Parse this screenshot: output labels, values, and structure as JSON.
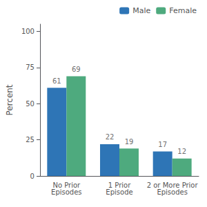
{
  "chart_data": {
    "type": "bar",
    "categories": [
      "No Prior\nEpisodes",
      "1 Prior\nEpisode",
      "2 or More Prior\nEpisodes"
    ],
    "series": [
      {
        "name": "Male",
        "color": "#2E75B6",
        "values": [
          61,
          22,
          17
        ]
      },
      {
        "name": "Female",
        "color": "#4EAA7E",
        "values": [
          69,
          19,
          12
        ]
      }
    ],
    "ylabel": "Percent",
    "ylim": [
      0,
      105
    ],
    "yticks": [
      0,
      25,
      50,
      75,
      100
    ],
    "grid": false,
    "legend": "upper right",
    "data_labels": true
  }
}
